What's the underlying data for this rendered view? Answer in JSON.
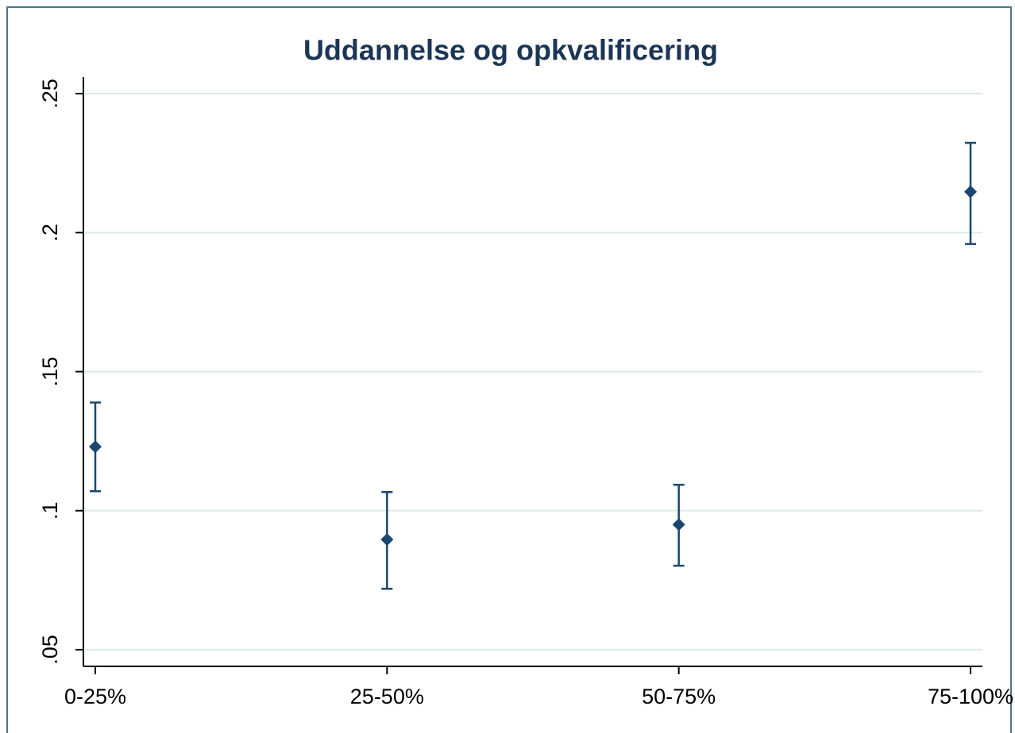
{
  "chart_data": {
    "type": "errorbar",
    "title": "Uddannelse og opkvalificering",
    "categories": [
      "0-25%",
      "25-50%",
      "50-75%",
      "75-100%"
    ],
    "series": [
      {
        "color": "#1a476f",
        "values": [
          0.123,
          0.0896,
          0.095,
          0.2147
        ],
        "lower": [
          0.107,
          0.0719,
          0.0802,
          0.1959
        ],
        "upper": [
          0.1389,
          0.1067,
          0.1093,
          0.2323
        ]
      }
    ],
    "ylim": [
      0.044,
      0.256
    ],
    "yticks": [
      {
        "value": 0.05,
        "label": ".05"
      },
      {
        "value": 0.1,
        "label": ".1"
      },
      {
        "value": 0.15,
        "label": ".15"
      },
      {
        "value": 0.2,
        "label": ".2"
      },
      {
        "value": 0.25,
        "label": ".25"
      }
    ],
    "grid": true
  }
}
